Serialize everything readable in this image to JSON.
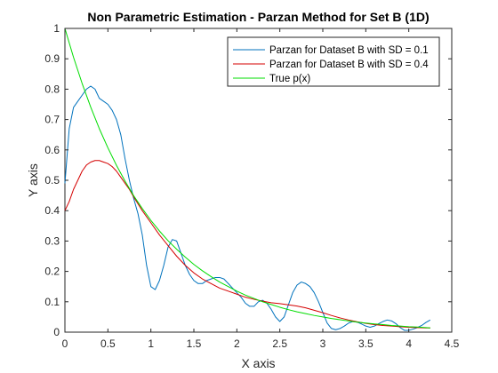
{
  "chart_data": {
    "type": "line",
    "title": "Non Parametric Estimation - Parzan Method for Set B (1D)",
    "xlabel": "X axis",
    "ylabel": "Y axis",
    "xlim": [
      0,
      4.5
    ],
    "ylim": [
      0,
      1
    ],
    "xticks": [
      0,
      0.5,
      1,
      1.5,
      2,
      2.5,
      3,
      3.5,
      4,
      4.5
    ],
    "xtick_labels": [
      "0",
      "0.5",
      "1",
      "1.5",
      "2",
      "2.5",
      "3",
      "3.5",
      "4",
      "4.5"
    ],
    "yticks": [
      0,
      0.1,
      0.2,
      0.3,
      0.4,
      0.5,
      0.6,
      0.7,
      0.8,
      0.9,
      1
    ],
    "ytick_labels": [
      "0",
      "0.1",
      "0.2",
      "0.3",
      "0.4",
      "0.5",
      "0.6",
      "0.7",
      "0.8",
      "0.9",
      "1"
    ],
    "grid": false,
    "legend_position": "top-right",
    "series": [
      {
        "name": "Parzan for Dataset B with SD = 0.1",
        "color": "#0072bd",
        "x": [
          0,
          0.05,
          0.1,
          0.15,
          0.2,
          0.25,
          0.3,
          0.35,
          0.4,
          0.45,
          0.5,
          0.55,
          0.6,
          0.65,
          0.7,
          0.75,
          0.8,
          0.85,
          0.9,
          0.95,
          1.0,
          1.05,
          1.1,
          1.15,
          1.2,
          1.25,
          1.3,
          1.35,
          1.4,
          1.45,
          1.5,
          1.55,
          1.6,
          1.65,
          1.7,
          1.75,
          1.8,
          1.85,
          1.9,
          1.95,
          2.0,
          2.05,
          2.1,
          2.15,
          2.2,
          2.25,
          2.3,
          2.35,
          2.4,
          2.45,
          2.5,
          2.55,
          2.6,
          2.65,
          2.7,
          2.75,
          2.8,
          2.85,
          2.9,
          2.95,
          3.0,
          3.05,
          3.1,
          3.15,
          3.2,
          3.25,
          3.3,
          3.35,
          3.4,
          3.45,
          3.5,
          3.55,
          3.6,
          3.65,
          3.7,
          3.75,
          3.8,
          3.85,
          3.9,
          3.95,
          4.0,
          4.05,
          4.1,
          4.15,
          4.2,
          4.25
        ],
        "y": [
          0.49,
          0.67,
          0.74,
          0.76,
          0.78,
          0.8,
          0.81,
          0.8,
          0.77,
          0.76,
          0.75,
          0.73,
          0.7,
          0.65,
          0.57,
          0.5,
          0.44,
          0.39,
          0.32,
          0.22,
          0.15,
          0.14,
          0.17,
          0.22,
          0.28,
          0.305,
          0.3,
          0.26,
          0.22,
          0.19,
          0.17,
          0.16,
          0.16,
          0.17,
          0.175,
          0.18,
          0.18,
          0.175,
          0.16,
          0.145,
          0.13,
          0.115,
          0.095,
          0.085,
          0.085,
          0.1,
          0.105,
          0.095,
          0.075,
          0.05,
          0.035,
          0.05,
          0.09,
          0.13,
          0.155,
          0.165,
          0.16,
          0.15,
          0.13,
          0.1,
          0.065,
          0.03,
          0.012,
          0.008,
          0.012,
          0.02,
          0.03,
          0.035,
          0.033,
          0.027,
          0.02,
          0.016,
          0.02,
          0.028,
          0.035,
          0.04,
          0.037,
          0.028,
          0.015,
          0.006,
          0.006,
          0.01,
          0.015,
          0.022,
          0.032,
          0.04
        ]
      },
      {
        "name": "Parzan for Dataset B with SD = 0.4",
        "color": "#d40000",
        "x": [
          0,
          0.05,
          0.1,
          0.15,
          0.2,
          0.25,
          0.3,
          0.35,
          0.4,
          0.45,
          0.5,
          0.55,
          0.6,
          0.65,
          0.7,
          0.75,
          0.8,
          0.9,
          1.0,
          1.1,
          1.2,
          1.3,
          1.4,
          1.5,
          1.6,
          1.7,
          1.8,
          1.9,
          2.0,
          2.1,
          2.2,
          2.3,
          2.4,
          2.5,
          2.6,
          2.7,
          2.8,
          2.9,
          3.0,
          3.1,
          3.2,
          3.3,
          3.4,
          3.5,
          3.6,
          3.7,
          3.8,
          3.9,
          4.0,
          4.1,
          4.2,
          4.25
        ],
        "y": [
          0.4,
          0.43,
          0.47,
          0.5,
          0.53,
          0.55,
          0.56,
          0.565,
          0.565,
          0.56,
          0.555,
          0.545,
          0.53,
          0.51,
          0.49,
          0.47,
          0.445,
          0.4,
          0.36,
          0.32,
          0.285,
          0.25,
          0.22,
          0.195,
          0.175,
          0.16,
          0.145,
          0.135,
          0.125,
          0.115,
          0.108,
          0.102,
          0.097,
          0.094,
          0.09,
          0.086,
          0.08,
          0.072,
          0.064,
          0.055,
          0.047,
          0.04,
          0.034,
          0.029,
          0.025,
          0.022,
          0.02,
          0.018,
          0.016,
          0.015,
          0.014,
          0.014
        ]
      },
      {
        "name": "True p(x)",
        "color": "#00dd00",
        "x": [
          0,
          0.1,
          0.2,
          0.3,
          0.4,
          0.5,
          0.6,
          0.7,
          0.8,
          0.9,
          1.0,
          1.1,
          1.2,
          1.3,
          1.4,
          1.5,
          1.6,
          1.7,
          1.8,
          1.9,
          2.0,
          2.1,
          2.2,
          2.3,
          2.4,
          2.5,
          2.6,
          2.7,
          2.8,
          2.9,
          3.0,
          3.1,
          3.2,
          3.3,
          3.4,
          3.5,
          3.6,
          3.7,
          3.8,
          3.9,
          4.0,
          4.1,
          4.2,
          4.25
        ],
        "y": [
          1.0,
          0.905,
          0.819,
          0.741,
          0.67,
          0.607,
          0.549,
          0.497,
          0.449,
          0.407,
          0.368,
          0.333,
          0.301,
          0.273,
          0.247,
          0.223,
          0.202,
          0.183,
          0.165,
          0.15,
          0.135,
          0.122,
          0.111,
          0.1,
          0.091,
          0.082,
          0.074,
          0.067,
          0.061,
          0.055,
          0.05,
          0.045,
          0.041,
          0.037,
          0.033,
          0.03,
          0.027,
          0.025,
          0.022,
          0.02,
          0.018,
          0.017,
          0.015,
          0.014
        ]
      }
    ]
  }
}
